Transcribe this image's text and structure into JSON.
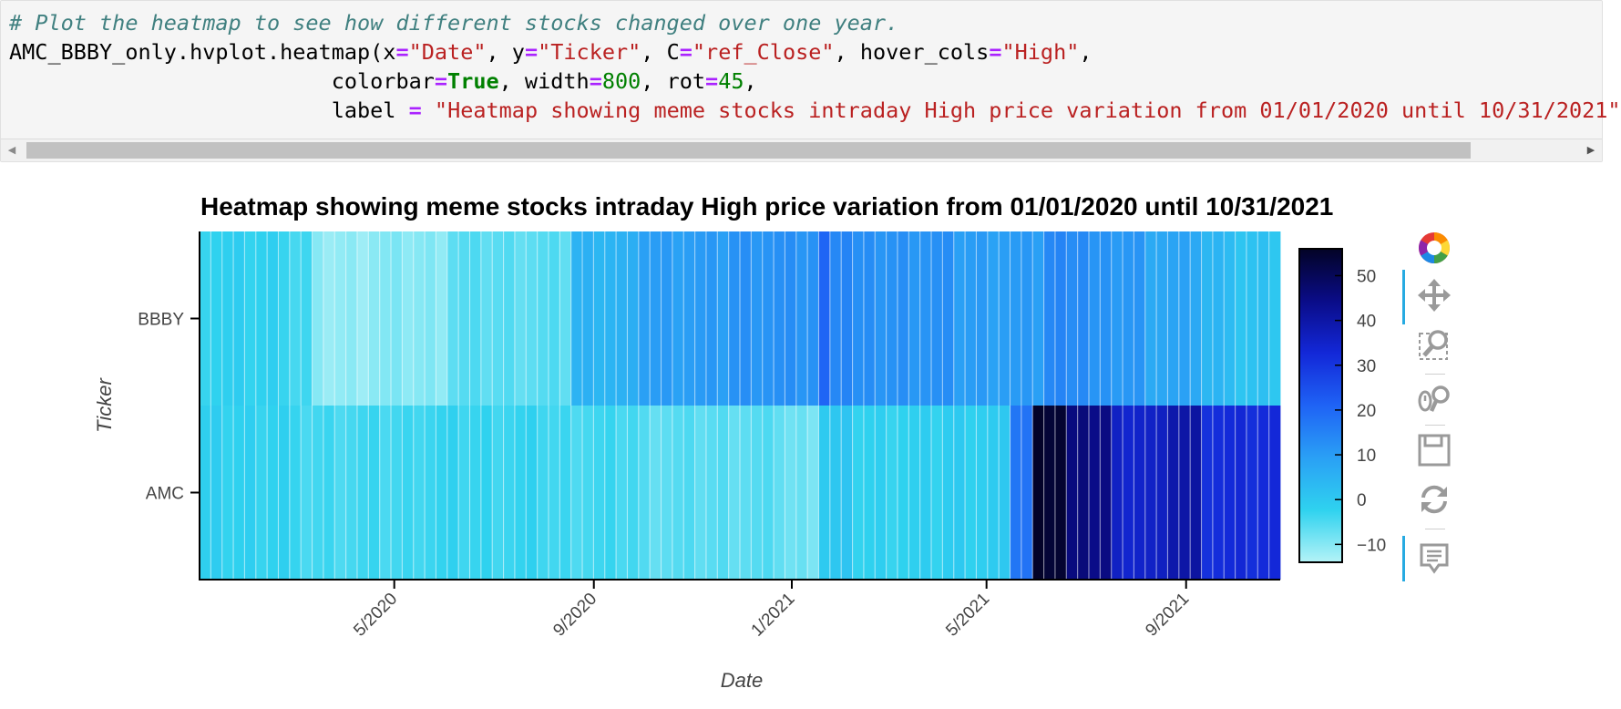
{
  "code_cell": {
    "lines": [
      [
        {
          "t": "# Plot the heatmap to see how different stocks changed over one year.",
          "c": "comment"
        }
      ],
      [
        {
          "t": "AMC_BBBY_only.hvplot.heatmap(x",
          "c": "plain"
        },
        {
          "t": "=",
          "c": "op"
        },
        {
          "t": "\"Date\"",
          "c": "str"
        },
        {
          "t": ", y",
          "c": "plain"
        },
        {
          "t": "=",
          "c": "op"
        },
        {
          "t": "\"Ticker\"",
          "c": "str"
        },
        {
          "t": ", C",
          "c": "plain"
        },
        {
          "t": "=",
          "c": "op"
        },
        {
          "t": "\"ref_Close\"",
          "c": "str"
        },
        {
          "t": ", hover_cols",
          "c": "plain"
        },
        {
          "t": "=",
          "c": "op"
        },
        {
          "t": "\"High\"",
          "c": "str"
        },
        {
          "t": ",",
          "c": "plain"
        }
      ],
      [
        {
          "t": "                         colorbar",
          "c": "plain"
        },
        {
          "t": "=",
          "c": "op"
        },
        {
          "t": "True",
          "c": "kw"
        },
        {
          "t": ", width",
          "c": "plain"
        },
        {
          "t": "=",
          "c": "op"
        },
        {
          "t": "800",
          "c": "num"
        },
        {
          "t": ", rot",
          "c": "plain"
        },
        {
          "t": "=",
          "c": "op"
        },
        {
          "t": "45",
          "c": "num"
        },
        {
          "t": ",",
          "c": "plain"
        }
      ],
      [
        {
          "t": "                         label ",
          "c": "plain"
        },
        {
          "t": "=",
          "c": "op"
        },
        {
          "t": " ",
          "c": "plain"
        },
        {
          "t": "\"Heatmap showing meme stocks intraday High price variation from 01/01/2020 until 10/31/2021\"",
          "c": "str"
        }
      ]
    ],
    "scroll_left_icon": "triangle-left-icon",
    "scroll_right_icon": "triangle-right-icon"
  },
  "chart_data": {
    "type": "heatmap",
    "title": "Heatmap showing meme stocks intraday High price variation from 01/01/2020 until 10/31/2021",
    "xlabel": "Date",
    "ylabel": "Ticker",
    "y_categories": [
      "AMC",
      "BBBY"
    ],
    "x_range": [
      "2020-01-02",
      "2021-10-29"
    ],
    "x_ticks": [
      "5/2020",
      "9/2020",
      "1/2021",
      "5/2021",
      "9/2021"
    ],
    "x_tick_dates": [
      "2020-05-01",
      "2020-09-01",
      "2021-01-01",
      "2021-05-01",
      "2021-09-01"
    ],
    "x_tick_rotation_deg": 45,
    "cell_interval": "weekly",
    "color_map": [
      "#b4f3f7",
      "#2fd2ef",
      "#2aa0f5",
      "#1f63f5",
      "#1328d8",
      "#0a0c88",
      "#030326"
    ],
    "colorbar": {
      "min": -14,
      "max": 56,
      "ticks": [
        50,
        40,
        30,
        20,
        10,
        0,
        -10
      ]
    },
    "series": [
      {
        "name": "BBBY",
        "segments": [
          {
            "from": "2020-01-02",
            "to": "2020-02-24",
            "value": -2
          },
          {
            "from": "2020-02-24",
            "to": "2020-03-09",
            "value": -4
          },
          {
            "from": "2020-03-09",
            "to": "2020-04-14",
            "value": -11
          },
          {
            "from": "2020-04-14",
            "to": "2020-06-01",
            "value": -10
          },
          {
            "from": "2020-06-01",
            "to": "2020-08-17",
            "value": -6
          },
          {
            "from": "2020-08-17",
            "to": "2020-09-28",
            "value": 5
          },
          {
            "from": "2020-09-28",
            "to": "2020-11-23",
            "value": 10
          },
          {
            "from": "2020-11-23",
            "to": "2021-01-18",
            "value": 12
          },
          {
            "from": "2021-01-18",
            "to": "2021-01-25",
            "value": 20
          },
          {
            "from": "2021-01-25",
            "to": "2021-02-08",
            "value": 15
          },
          {
            "from": "2021-02-08",
            "to": "2021-04-12",
            "value": 12
          },
          {
            "from": "2021-04-12",
            "to": "2021-05-17",
            "value": 10
          },
          {
            "from": "2021-05-17",
            "to": "2021-06-07",
            "value": 10
          },
          {
            "from": "2021-06-07",
            "to": "2021-07-05",
            "value": 14
          },
          {
            "from": "2021-07-05",
            "to": "2021-08-09",
            "value": 11
          },
          {
            "from": "2021-08-09",
            "to": "2021-09-13",
            "value": 8
          },
          {
            "from": "2021-09-13",
            "to": "2021-10-04",
            "value": 4
          },
          {
            "from": "2021-10-04",
            "to": "2021-10-29",
            "value": 1
          }
        ]
      },
      {
        "name": "AMC",
        "segments": [
          {
            "from": "2020-01-02",
            "to": "2020-02-24",
            "value": -2
          },
          {
            "from": "2020-02-24",
            "to": "2020-05-11",
            "value": -4
          },
          {
            "from": "2020-05-11",
            "to": "2020-08-03",
            "value": -3
          },
          {
            "from": "2020-08-03",
            "to": "2020-09-28",
            "value": -4
          },
          {
            "from": "2020-09-28",
            "to": "2020-12-28",
            "value": -6
          },
          {
            "from": "2020-12-28",
            "to": "2021-01-18",
            "value": -8
          },
          {
            "from": "2021-01-18",
            "to": "2021-02-08",
            "value": 0
          },
          {
            "from": "2021-02-08",
            "to": "2021-04-05",
            "value": -2
          },
          {
            "from": "2021-04-05",
            "to": "2021-05-17",
            "value": -1
          },
          {
            "from": "2021-05-17",
            "to": "2021-05-31",
            "value": 18
          },
          {
            "from": "2021-05-31",
            "to": "2021-06-21",
            "value": 55
          },
          {
            "from": "2021-06-21",
            "to": "2021-07-19",
            "value": 45
          },
          {
            "from": "2021-07-19",
            "to": "2021-08-23",
            "value": 35
          },
          {
            "from": "2021-08-23",
            "to": "2021-09-13",
            "value": 40
          },
          {
            "from": "2021-09-13",
            "to": "2021-10-29",
            "value": 32
          }
        ]
      }
    ]
  },
  "toolbar": {
    "tools": [
      {
        "name": "bokeh-logo-icon",
        "active": false
      },
      {
        "name": "pan-tool-icon",
        "active": true
      },
      {
        "name": "box-zoom-tool-icon",
        "active": false
      },
      {
        "name": "wheel-zoom-tool-icon",
        "active": false
      },
      {
        "name": "save-tool-icon",
        "active": false
      },
      {
        "name": "reset-tool-icon",
        "active": false
      },
      {
        "name": "hover-tool-icon",
        "active": true
      }
    ]
  }
}
